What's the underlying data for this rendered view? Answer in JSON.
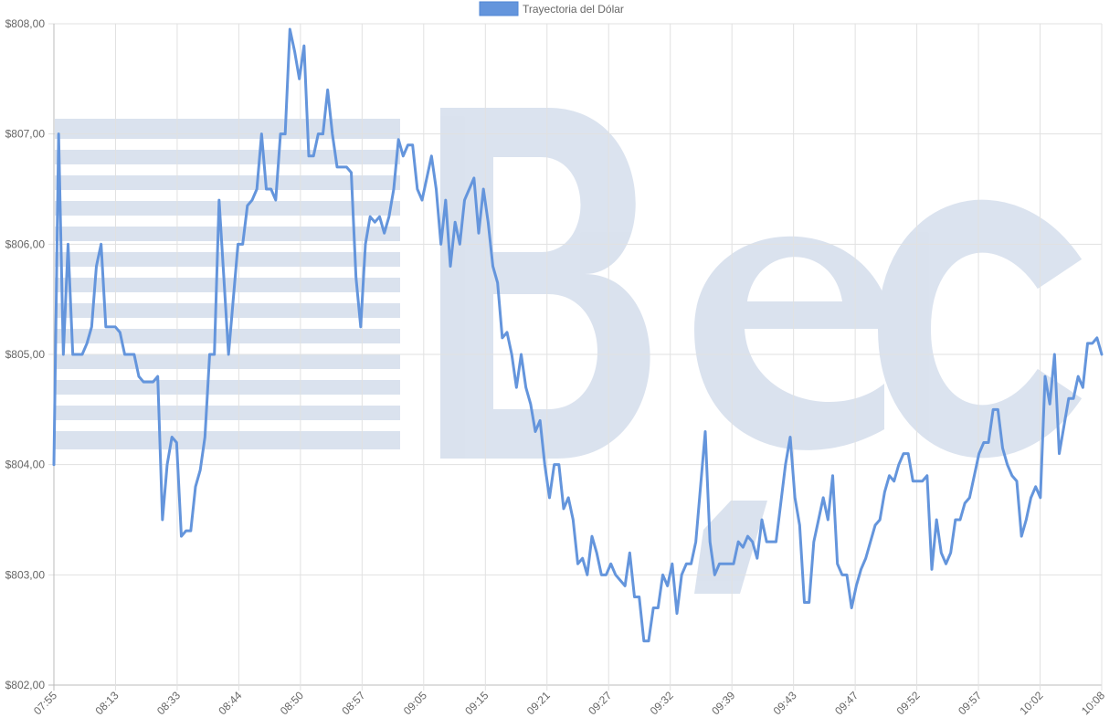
{
  "chart_data": {
    "type": "line",
    "title": "",
    "xlabel": "",
    "ylabel": "",
    "ylim": [
      802,
      808
    ],
    "grid": true,
    "legend_position": "top-center",
    "y_ticks": [
      "$802,00",
      "$803,00",
      "$804,00",
      "$805,00",
      "$806,00",
      "$807,00",
      "$808,00"
    ],
    "x_tick_labels": [
      "07:55",
      "08:13",
      "08:33",
      "08:44",
      "08:50",
      "08:57",
      "09:05",
      "09:15",
      "09:21",
      "09:27",
      "09:32",
      "09:39",
      "09:43",
      "09:47",
      "09:52",
      "09:57",
      "10:02",
      "10:08"
    ],
    "series": [
      {
        "name": "Trayectoria del Dólar",
        "color": "#6495dc",
        "values": [
          804.0,
          807.0,
          805.0,
          806.0,
          805.0,
          805.0,
          805.0,
          805.1,
          805.25,
          805.8,
          806.0,
          805.25,
          805.25,
          805.25,
          805.2,
          805.0,
          805.0,
          805.0,
          804.8,
          804.75,
          804.75,
          804.75,
          804.8,
          803.5,
          804.0,
          804.25,
          804.2,
          803.35,
          803.4,
          803.4,
          803.8,
          803.95,
          804.25,
          805.0,
          805.0,
          806.4,
          805.7,
          805.0,
          805.5,
          806.0,
          806.0,
          806.35,
          806.4,
          806.5,
          807.0,
          806.5,
          806.5,
          806.4,
          807.0,
          807.0,
          807.95,
          807.75,
          807.5,
          807.8,
          806.8,
          806.8,
          807.0,
          807.0,
          807.4,
          807.0,
          806.7,
          806.7,
          806.7,
          806.65,
          805.7,
          805.25,
          806.0,
          806.25,
          806.2,
          806.25,
          806.1,
          806.25,
          806.5,
          806.95,
          806.8,
          806.9,
          806.9,
          806.5,
          806.4,
          806.6,
          806.8,
          806.5,
          806.0,
          806.4,
          805.8,
          806.2,
          806.0,
          806.4,
          806.5,
          806.6,
          806.1,
          806.5,
          806.2,
          805.8,
          805.65,
          805.15,
          805.2,
          805.0,
          804.7,
          805.0,
          804.7,
          804.55,
          804.3,
          804.4,
          804.0,
          803.7,
          804.0,
          804.0,
          803.6,
          803.7,
          803.5,
          803.1,
          803.15,
          803.0,
          803.35,
          803.2,
          803.0,
          803.0,
          803.1,
          803.0,
          802.95,
          802.9,
          803.2,
          802.8,
          802.8,
          802.4,
          802.4,
          802.7,
          802.7,
          803.0,
          802.9,
          803.1,
          802.65,
          803.0,
          803.1,
          803.1,
          803.3,
          803.8,
          804.3,
          803.3,
          803.0,
          803.1,
          803.1,
          803.1,
          803.1,
          803.3,
          803.25,
          803.35,
          803.3,
          803.15,
          803.5,
          803.3,
          803.3,
          803.3,
          803.65,
          804.0,
          804.25,
          803.7,
          803.45,
          802.75,
          802.75,
          803.3,
          803.5,
          803.7,
          803.5,
          803.9,
          803.1,
          803.0,
          803.0,
          802.7,
          802.9,
          803.05,
          803.15,
          803.3,
          803.45,
          803.5,
          803.75,
          803.9,
          803.85,
          804.0,
          804.1,
          804.1,
          803.85,
          803.85,
          803.85,
          803.9,
          803.05,
          803.5,
          803.2,
          803.1,
          803.2,
          803.5,
          803.5,
          803.65,
          803.7,
          803.9,
          804.1,
          804.2,
          804.2,
          804.5,
          804.5,
          804.15,
          804.0,
          803.9,
          803.85,
          803.35,
          803.5,
          803.7,
          803.8,
          803.7,
          804.8,
          804.55,
          805.0,
          804.1,
          804.35,
          804.6,
          804.6,
          804.8,
          804.7,
          805.1,
          805.1,
          805.15,
          805.0
        ]
      }
    ]
  }
}
